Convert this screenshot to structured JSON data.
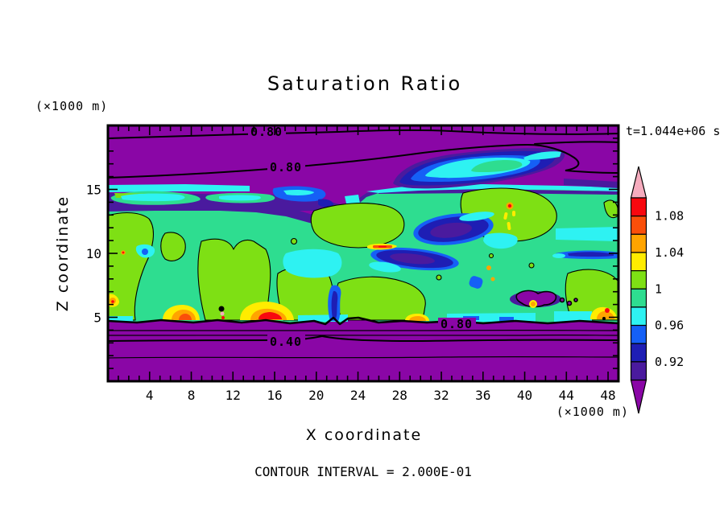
{
  "figure": {
    "title": "Saturation Ratio",
    "timestamp": "t=1.044e+06 s",
    "footnote": "CONTOUR INTERVAL = 2.000E-01",
    "x_axis": {
      "label": "X coordinate",
      "unit": "(×1000 m)",
      "tick_labels": [
        "4",
        "8",
        "12",
        "16",
        "20",
        "24",
        "28",
        "32",
        "36",
        "40",
        "44",
        "48"
      ]
    },
    "y_axis": {
      "label": "Z coordinate",
      "unit": "(×1000 m)",
      "tick_labels": [
        "15",
        "10",
        "5"
      ]
    },
    "colorbar": {
      "labels": [
        "1.08",
        "1.04",
        "1",
        "0.96",
        "0.92"
      ],
      "label_boundary_indices": [
        1,
        3,
        5,
        7,
        9
      ]
    },
    "contour_labels": [
      "0.80",
      "0.80",
      "0.40",
      "0.80"
    ],
    "palette": {
      "background": "#ffffff",
      "purple": "#8A06A6",
      "dark_violet": "#4A1A9E",
      "navy": "#1E1EB4",
      "blue": "#1560F6",
      "cyan": "#2EF2F2",
      "green": "#2EDD90",
      "yellow_green": "#7EE014",
      "yellow": "#FFEC00",
      "orange": "#FFA400",
      "orange_red": "#FA4F0A",
      "red": "#F8080F",
      "pink": "#F6ACBE",
      "contour": "#000000"
    }
  },
  "chart_data": {
    "type": "contour",
    "title": "Saturation Ratio",
    "xlabel": "X coordinate",
    "ylabel": "Z coordinate",
    "axis_unit": "×1000 m",
    "x_range": [
      0,
      49
    ],
    "z_range": [
      0,
      20
    ],
    "x_major_ticks": [
      4,
      8,
      12,
      16,
      20,
      24,
      28,
      32,
      36,
      40,
      44,
      48
    ],
    "x_minor_tick_step": 1,
    "z_major_ticks": [
      5,
      10,
      15
    ],
    "z_minor_tick_step": 1,
    "time_annotation": "t=1.044e+06 s",
    "contour_interval": 0.2,
    "line_contour_labels": [
      {
        "value": 0.8,
        "x": 15.2,
        "z": 19.2
      },
      {
        "value": 0.8,
        "x": 17.1,
        "z": 16.4
      },
      {
        "value": 0.4,
        "x": 17.1,
        "z": 2.8
      },
      {
        "value": 0.8,
        "x": 33.4,
        "z": 4.3
      }
    ],
    "fill_levels": [
      0.9,
      0.92,
      0.94,
      0.96,
      0.98,
      1.0,
      1.02,
      1.04,
      1.06,
      1.08,
      1.1
    ],
    "fill_colors_low_to_high": [
      "#4A1A9E",
      "#1E1EB4",
      "#1560F6",
      "#2EF2F2",
      "#2EDD90",
      "#7EE014",
      "#FFEC00",
      "#FFA400",
      "#FA4F0A",
      "#F8080F"
    ],
    "under_color": "#8A06A6",
    "over_color": "#F6ACBE",
    "colorbar_tick_labels": [
      "0.92",
      "0.96",
      "1",
      "1.04",
      "1.08"
    ],
    "legend_position": "right",
    "grid": false,
    "description": "Near-saturated (S≈1) green band between z≈4000 m and z≈15,000 m containing sub-saturated blue/navy pockets, an elevated moist cyan/blue layer near z≈15,000 m, and supersaturation maxima (yellow/orange/red) near cloud base; strongly sub-saturated purple air above and below with line contours every 0.2 (0.40 and 0.80 labeled)."
  }
}
